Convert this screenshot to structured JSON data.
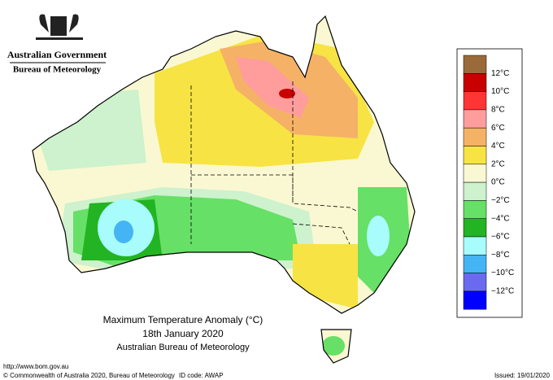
{
  "header": {
    "government": "Australian Government",
    "agency": "Bureau of Meteorology"
  },
  "legend": [
    {
      "color": "#9a6a3a"
    },
    {
      "label": "12°C",
      "color": "#c80000"
    },
    {
      "label": "10°C",
      "color": "#ff3434"
    },
    {
      "label": "8°C",
      "color": "#ff9c9c"
    },
    {
      "label": "6°C",
      "color": "#f5b266"
    },
    {
      "label": "4°C",
      "color": "#f7e444"
    },
    {
      "label": "2°C",
      "color": "#faf8d2"
    },
    {
      "label": "0°C",
      "color": "#cdf2cd"
    },
    {
      "label": "−2°C",
      "color": "#66e066"
    },
    {
      "label": "−4°C",
      "color": "#22b422"
    },
    {
      "label": "−6°C",
      "color": "#a8fcfc"
    },
    {
      "label": "−8°C",
      "color": "#44b4f4"
    },
    {
      "label": "−10°C",
      "color": "#6a6af0"
    },
    {
      "label": "−12°C",
      "color": "#0000ff"
    }
  ],
  "caption": {
    "title": "Maximum Temperature Anomaly (°C)",
    "date": "18th January 2020",
    "source": "Australian Bureau of Meteorology"
  },
  "footer": {
    "url": "http://www.bom.gov.au",
    "copyright": "© Commonwealth of Australia 2020, Bureau of Meteorology",
    "id_code": "ID code: AWAP",
    "issued": "Issued: 19/01/2020"
  }
}
